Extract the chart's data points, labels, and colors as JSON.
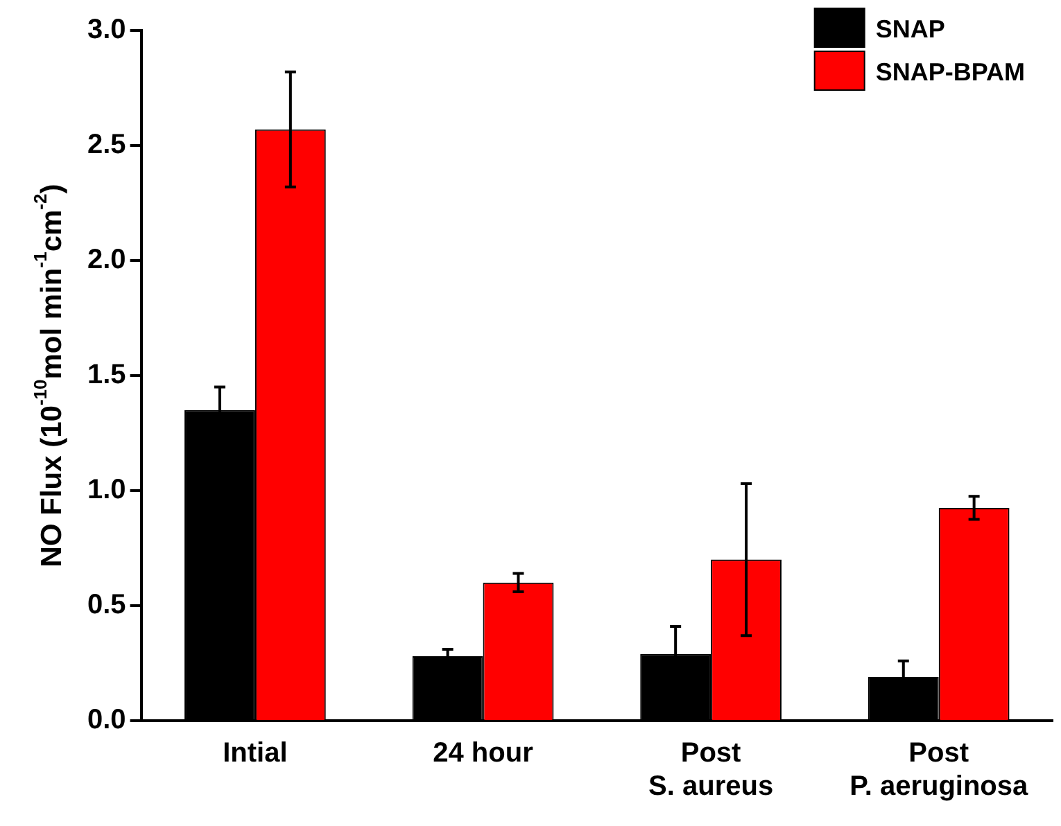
{
  "chart_data": {
    "type": "bar",
    "ylabel": "NO Flux (10$^{-10}$mol min$^{-1}$cm$^{-2}$)",
    "categories": [
      "Intial",
      "24 hour",
      "Post\nS. aureus",
      "Post\nP. aeruginosa"
    ],
    "series": [
      {
        "name": "SNAP",
        "color": "#000000",
        "values": [
          1.35,
          0.28,
          0.29,
          0.19
        ],
        "errors": [
          0.1,
          0.03,
          0.12,
          0.07
        ]
      },
      {
        "name": "SNAP-BPAM",
        "color": "#ff0000",
        "values": [
          2.57,
          0.6,
          0.7,
          0.925
        ],
        "errors": [
          0.25,
          0.04,
          0.33,
          0.05
        ]
      }
    ],
    "ylim": [
      0,
      3.0
    ],
    "yticks": [
      {
        "value": 0,
        "label": "0.0"
      },
      {
        "value": 0.5,
        "label": "0.5"
      },
      {
        "value": 1,
        "label": "1.0"
      },
      {
        "value": 1.5,
        "label": "1.5"
      },
      {
        "value": 2,
        "label": "2.0"
      },
      {
        "value": 2.5,
        "label": "2.5"
      },
      {
        "value": 3,
        "label": "3.0"
      }
    ],
    "grid": false,
    "legend": "top right"
  }
}
